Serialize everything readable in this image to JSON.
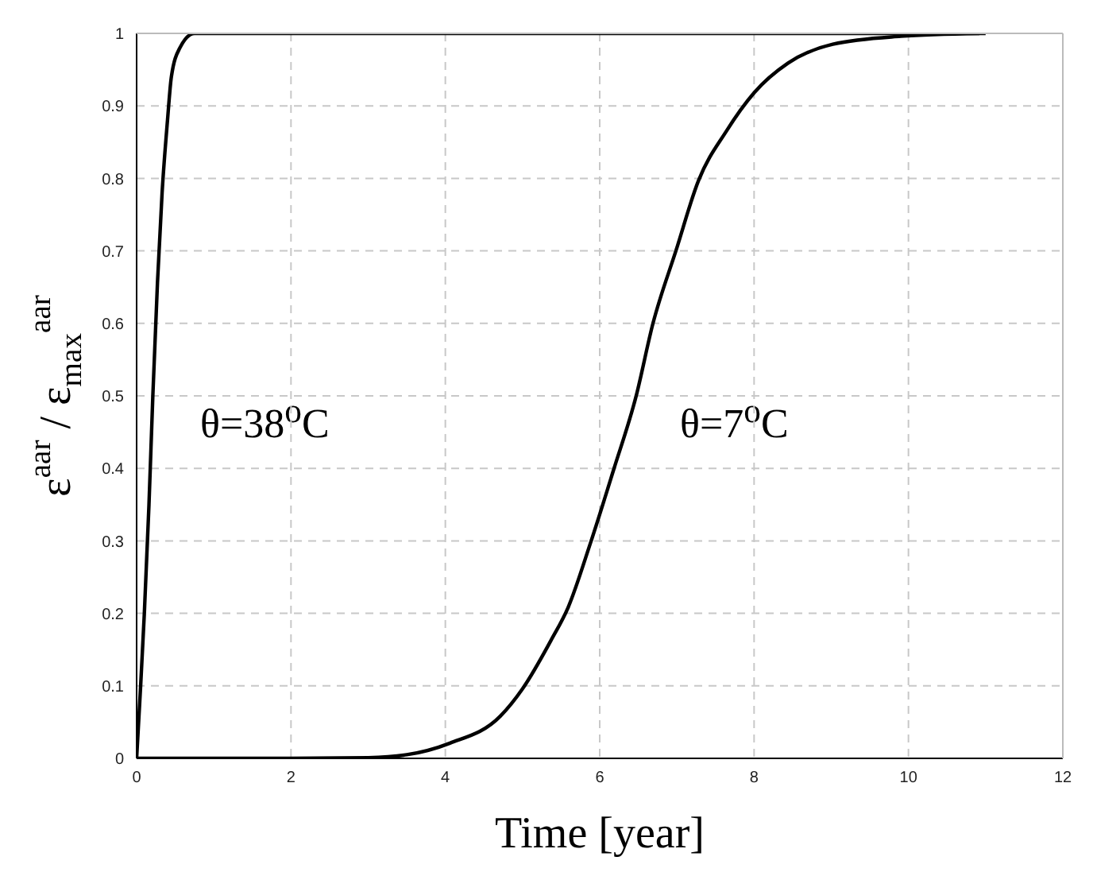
{
  "chart_data": {
    "type": "line",
    "xlabel": "Time [year]",
    "ylabel": "ε$^{aar}$ / ε$_{max}$$^{aar}$",
    "series": [
      {
        "color": "#000000",
        "x": [
          0,
          0.05,
          0.1,
          0.16,
          0.21,
          0.27,
          0.33,
          0.4,
          0.45,
          0.56,
          0.75,
          2,
          4,
          6,
          8,
          10,
          11
        ],
        "values": [
          0,
          0.096,
          0.2,
          0.35,
          0.5,
          0.656,
          0.78,
          0.88,
          0.94,
          0.98,
          1,
          1,
          1,
          1,
          1,
          1,
          1
        ]
      },
      {
        "color": "#000000",
        "x": [
          0,
          2,
          3,
          3.5,
          4.06,
          4.71,
          5.0,
          5.37,
          5.59,
          5.88,
          6.18,
          6.47,
          6.69,
          6.99,
          7.28,
          7.64,
          8.0,
          8.44,
          9.02,
          9.9,
          10.92
        ],
        "values": [
          0,
          0,
          0.001,
          0.005,
          0.021,
          0.058,
          0.096,
          0.163,
          0.208,
          0.297,
          0.398,
          0.499,
          0.6,
          0.701,
          0.797,
          0.865,
          0.918,
          0.959,
          0.985,
          0.996,
          1
        ]
      }
    ],
    "annotations": [
      "θ=38$^{o}$C",
      "θ=7$^{o}$C"
    ],
    "xlim": [
      0,
      12
    ],
    "xticks": [
      0,
      2,
      4,
      6,
      8,
      10,
      12
    ],
    "ylim": [
      0,
      1
    ],
    "yticks": [
      0,
      0.1,
      0.2,
      0.3,
      0.4,
      0.5,
      0.6,
      0.7,
      0.8,
      0.9,
      1
    ],
    "grid": true,
    "marker": "none",
    "line_style": "solid"
  }
}
